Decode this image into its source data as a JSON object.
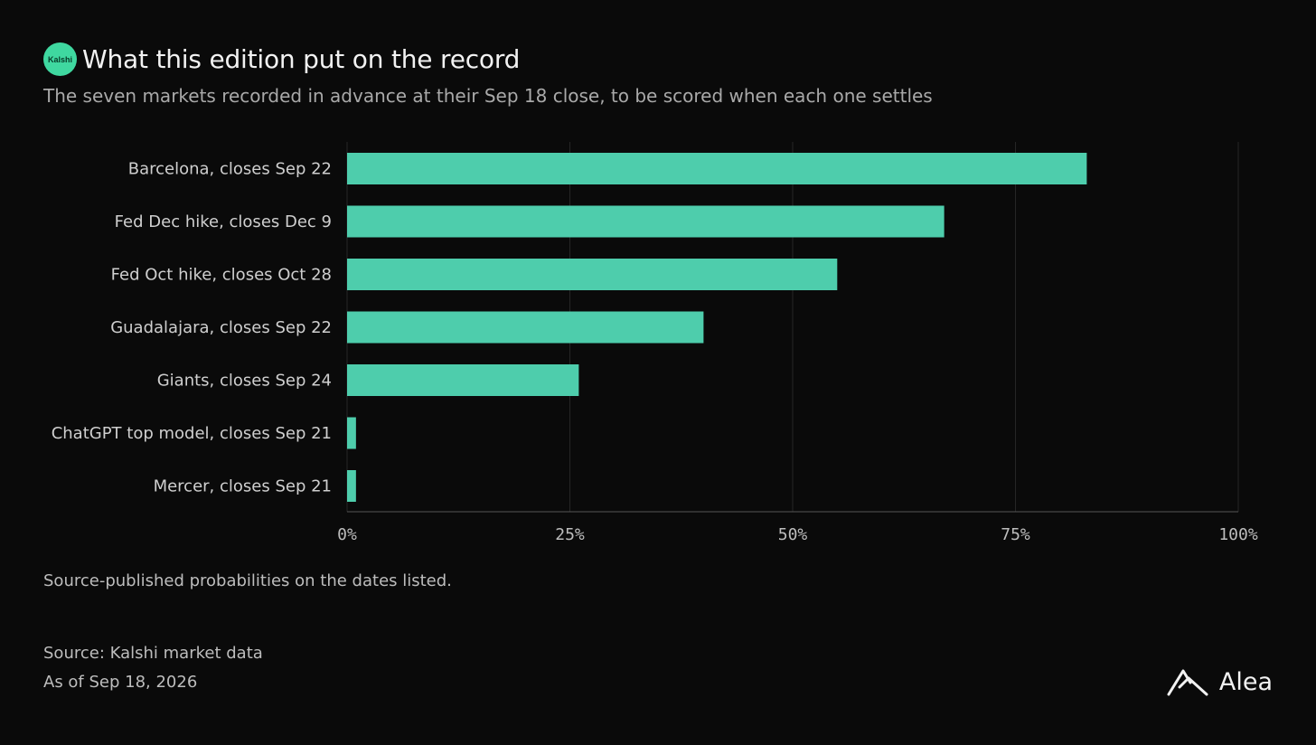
{
  "header": {
    "badge_text": "Kalshi",
    "title": "What this edition put on the record",
    "subtitle": "The seven markets recorded in advance at their Sep 18 close, to be scored when each one settles"
  },
  "footer": {
    "note": "Source-published probabilities on the dates listed.",
    "source": "Source: Kalshi market data",
    "as_of": "As of Sep 18, 2026",
    "brand_name": "Alea"
  },
  "colors": {
    "background": "#0a0a0a",
    "bar": "#4ecdac",
    "badge": "#3fd8a0",
    "grid": "#262626",
    "axis": "#555555"
  },
  "chart_data": {
    "type": "bar",
    "orientation": "horizontal",
    "categories": [
      "Barcelona, closes Sep 22",
      "Fed Dec hike, closes Dec 9",
      "Fed Oct hike, closes Oct 28",
      "Guadalajara, closes Sep 22",
      "Giants, closes Sep 24",
      "ChatGPT top model, closes Sep 21",
      "Mercer, closes Sep 21"
    ],
    "values": [
      83,
      67,
      55,
      40,
      26,
      1,
      1
    ],
    "unit": "%",
    "xlim": [
      0,
      100
    ],
    "xticks": [
      0,
      25,
      50,
      75,
      100
    ],
    "xtick_labels": [
      "0%",
      "25%",
      "50%",
      "75%",
      "100%"
    ],
    "grid": true,
    "legend": false
  }
}
